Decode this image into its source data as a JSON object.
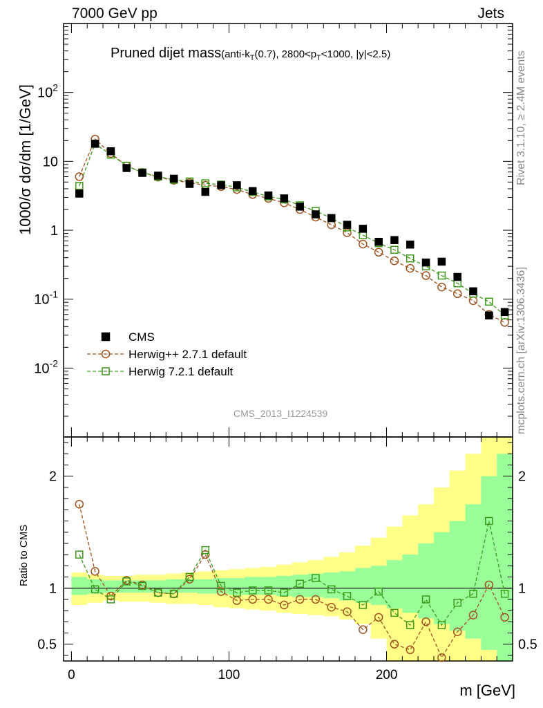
{
  "header": {
    "left": "7000 GeV pp",
    "right": "Jets"
  },
  "plot_title": {
    "main": "Pruned dijet mass",
    "cut_prefix": "(anti-k",
    "cut_sub1": "T",
    "cut_mid": "(0.7), 2800<p",
    "cut_sub2": "T",
    "cut_suffix": "<1000, |y|<2.5)"
  },
  "side_text": {
    "rivet": "Rivet 3.1.10, ≥ 2.4M events",
    "mcplots": "mcplots.cern.ch [arXiv:1306.3436]"
  },
  "watermark": "CMS_2013_I1224539",
  "colors": {
    "herwig_pp": "#a0521e",
    "herwig7": "#3c9a1a",
    "band_inner": "#99ff99",
    "band_outer": "#ffff88"
  },
  "chart_data": [
    {
      "type": "scatter",
      "panel": "main",
      "ylabel": "1000/σ dσ/dm [1/GeV]",
      "yscale": "log",
      "ylim": [
        0.001,
        1000
      ],
      "xlim": [
        -5,
        280
      ],
      "ytick_labels": [
        "10^-2",
        "10^-1",
        "1",
        "10",
        "10^2"
      ],
      "legend_position": "lower-left",
      "x": [
        5,
        15,
        25,
        35,
        45,
        55,
        65,
        75,
        85,
        95,
        105,
        115,
        125,
        135,
        145,
        155,
        165,
        175,
        185,
        195,
        205,
        215,
        225,
        235,
        245,
        255,
        265,
        275
      ],
      "series": [
        {
          "name": "CMS",
          "marker": "filled-square",
          "values": [
            3.4,
            18,
            14,
            8,
            6.8,
            6.2,
            5.6,
            4.7,
            3.6,
            4.5,
            4.5,
            3.7,
            3.2,
            2.9,
            2.2,
            1.7,
            1.5,
            1.2,
            1.05,
            0.68,
            0.72,
            0.62,
            0.34,
            0.35,
            0.21,
            0.13,
            0.058,
            0.065
          ]
        },
        {
          "name": "Herwig++ 2.7.1 default",
          "marker": "open-circle",
          "values": [
            6,
            21,
            13,
            8.6,
            6.9,
            5.9,
            5.3,
            4.9,
            4.5,
            4.3,
            3.9,
            3.3,
            2.9,
            2.5,
            2.0,
            1.55,
            1.2,
            0.92,
            0.63,
            0.48,
            0.36,
            0.28,
            0.22,
            0.15,
            0.12,
            0.095,
            0.06,
            0.046
          ]
        },
        {
          "name": "Herwig 7.2.1 default",
          "marker": "open-square",
          "values": [
            4.4,
            18,
            12.5,
            8.6,
            6.9,
            6,
            5.4,
            5.1,
            4.8,
            4.6,
            4.2,
            3.6,
            3.1,
            2.8,
            2.3,
            1.9,
            1.5,
            1.1,
            0.85,
            0.65,
            0.52,
            0.39,
            0.3,
            0.22,
            0.17,
            0.12,
            0.092,
            0.058
          ]
        }
      ]
    },
    {
      "type": "scatter",
      "panel": "ratio",
      "ylabel": "Ratio to CMS",
      "xlabel": "m [GeV]",
      "ylim": [
        0.35,
        2.35
      ],
      "xlim": [
        -5,
        280
      ],
      "ytick_labels": [
        "0.5",
        "1",
        "2"
      ],
      "xtick_labels": [
        "0",
        "100",
        "200"
      ],
      "x": [
        5,
        15,
        25,
        35,
        45,
        55,
        65,
        75,
        85,
        95,
        105,
        115,
        125,
        135,
        145,
        155,
        165,
        175,
        185,
        195,
        205,
        215,
        225,
        235,
        245,
        255,
        265,
        275
      ],
      "bands": {
        "edges": [
          0,
          10,
          20,
          30,
          40,
          50,
          60,
          70,
          80,
          90,
          100,
          110,
          120,
          130,
          140,
          150,
          160,
          170,
          180,
          190,
          200,
          210,
          220,
          230,
          240,
          250,
          260,
          270,
          280
        ],
        "inner_low": [
          0.94,
          0.95,
          0.96,
          0.96,
          0.96,
          0.96,
          0.96,
          0.96,
          0.95,
          0.95,
          0.94,
          0.94,
          0.94,
          0.93,
          0.92,
          0.92,
          0.91,
          0.89,
          0.87,
          0.85,
          0.82,
          0.78,
          0.73,
          0.68,
          0.62,
          0.55,
          0.45,
          0.35
        ],
        "inner_high": [
          1.1,
          1.08,
          1.07,
          1.07,
          1.07,
          1.07,
          1.08,
          1.08,
          1.08,
          1.09,
          1.09,
          1.1,
          1.1,
          1.11,
          1.12,
          1.13,
          1.14,
          1.15,
          1.18,
          1.2,
          1.25,
          1.3,
          1.4,
          1.5,
          1.6,
          1.75,
          2.0,
          2.2
        ],
        "outer_low": [
          0.85,
          0.87,
          0.89,
          0.88,
          0.88,
          0.87,
          0.86,
          0.86,
          0.85,
          0.83,
          0.82,
          0.81,
          0.8,
          0.78,
          0.77,
          0.76,
          0.75,
          0.72,
          0.68,
          0.55,
          0.35,
          0.35,
          0.35,
          0.35,
          0.35,
          0.35,
          0.35,
          0.35
        ],
        "outer_high": [
          1.14,
          1.12,
          1.11,
          1.11,
          1.12,
          1.12,
          1.13,
          1.14,
          1.15,
          1.16,
          1.17,
          1.18,
          1.19,
          1.21,
          1.23,
          1.25,
          1.28,
          1.32,
          1.38,
          1.45,
          1.55,
          1.65,
          1.75,
          1.9,
          2.05,
          2.2,
          2.35,
          2.35
        ]
      },
      "series": [
        {
          "name": "Herwig++ 2.7.1 default",
          "marker": "open-circle",
          "values": [
            1.75,
            1.15,
            0.93,
            1.07,
            1.03,
            0.96,
            0.95,
            1.08,
            1.3,
            0.97,
            0.89,
            0.9,
            0.9,
            0.85,
            0.9,
            0.9,
            0.83,
            0.79,
            0.63,
            0.74,
            0.5,
            0.45,
            0.7,
            0.38,
            0.61,
            0.76,
            1.03,
            0.74
          ]
        },
        {
          "name": "Herwig 7.2.1 default",
          "marker": "open-square",
          "values": [
            1.3,
            0.99,
            0.9,
            1.06,
            1.02,
            0.96,
            0.95,
            1.1,
            1.34,
            1.02,
            0.96,
            0.98,
            0.98,
            0.96,
            1.04,
            1.09,
            0.99,
            0.93,
            0.85,
            0.97,
            0.78,
            0.67,
            0.9,
            0.67,
            0.87,
            0.95,
            1.6,
            0.95
          ]
        }
      ]
    }
  ]
}
